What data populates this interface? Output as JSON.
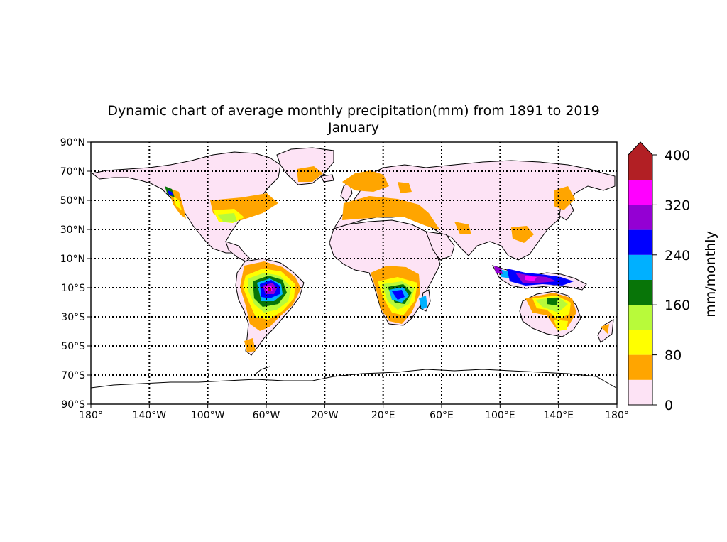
{
  "title": {
    "line1": "Dynamic chart of average monthly precipitation(mm) from 1891 to 2019",
    "line2": "January"
  },
  "map": {
    "projection": "plate-carree",
    "lon_range": [
      -180,
      180
    ],
    "lat_range": [
      -90,
      90
    ],
    "grid": true,
    "lat_ticks": [
      {
        "value": 90,
        "label": "90°N"
      },
      {
        "value": 70,
        "label": "70°N"
      },
      {
        "value": 50,
        "label": "50°N"
      },
      {
        "value": 30,
        "label": "30°N"
      },
      {
        "value": 10,
        "label": "10°N"
      },
      {
        "value": -10,
        "label": "10°S"
      },
      {
        "value": -30,
        "label": "30°S"
      },
      {
        "value": -50,
        "label": "50°S"
      },
      {
        "value": -70,
        "label": "70°S"
      },
      {
        "value": -90,
        "label": "90°S"
      }
    ],
    "lon_ticks": [
      {
        "value": -180,
        "label": "180°"
      },
      {
        "value": -140,
        "label": "140°W"
      },
      {
        "value": -100,
        "label": "100°W"
      },
      {
        "value": -60,
        "label": "60°W"
      },
      {
        "value": -20,
        "label": "20°W"
      },
      {
        "value": 20,
        "label": "20°E"
      },
      {
        "value": 60,
        "label": "60°E"
      },
      {
        "value": 100,
        "label": "100°E"
      },
      {
        "value": 140,
        "label": "140°E"
      },
      {
        "value": 180,
        "label": "180°"
      }
    ]
  },
  "colorbar": {
    "label": "mm/monthly",
    "extend": "max",
    "bins": [
      {
        "min": 0,
        "max": 40,
        "color": "#fde3f5"
      },
      {
        "min": 40,
        "max": 80,
        "color": "#ffa500"
      },
      {
        "min": 80,
        "max": 120,
        "color": "#ffff00"
      },
      {
        "min": 120,
        "max": 160,
        "color": "#b8fa3a"
      },
      {
        "min": 160,
        "max": 200,
        "color": "#087508"
      },
      {
        "min": 200,
        "max": 240,
        "color": "#00b0ff"
      },
      {
        "min": 240,
        "max": 280,
        "color": "#0000ff"
      },
      {
        "min": 280,
        "max": 320,
        "color": "#9400d3"
      },
      {
        "min": 320,
        "max": 360,
        "color": "#ff00ff"
      },
      {
        "min": 360,
        "max": 400,
        "color": "#b21f24"
      }
    ],
    "ticks": [
      {
        "value": 0,
        "label": "0"
      },
      {
        "value": 80,
        "label": "80"
      },
      {
        "value": 160,
        "label": "160"
      },
      {
        "value": 240,
        "label": "240"
      },
      {
        "value": 320,
        "label": "320"
      },
      {
        "value": 400,
        "label": "400"
      }
    ],
    "extend_color": "#b21f24"
  }
}
